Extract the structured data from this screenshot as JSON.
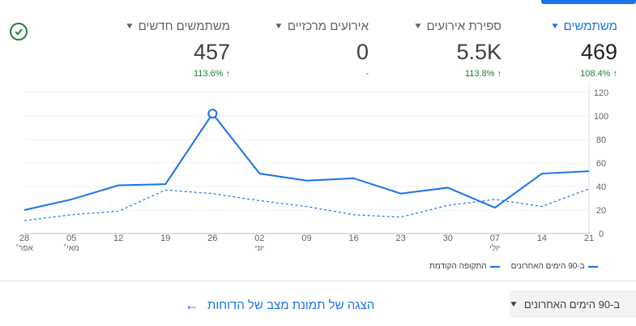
{
  "metrics": [
    {
      "label": "משתמשים",
      "value": "469",
      "change": "108.4%",
      "trend_icon": "arrow-up-icon"
    },
    {
      "label": "ספירת אירועים",
      "value": "5.5K",
      "change": "113.8%",
      "trend_icon": "arrow-up-icon"
    },
    {
      "label": "אירועים מרכזיים",
      "value": "0",
      "change": "-",
      "trend_icon": ""
    },
    {
      "label": "משתמשים חדשים",
      "value": "457",
      "change": "113.6%",
      "trend_icon": "arrow-up-icon"
    }
  ],
  "status_icon": "check-circle-icon",
  "chart_data": {
    "type": "line",
    "x": [
      "28",
      "05",
      "12",
      "19",
      "26",
      "02",
      "09",
      "16",
      "23",
      "30",
      "07",
      "14",
      "21"
    ],
    "x_sublabels": [
      "אפר׳",
      "מאי׳",
      "",
      "",
      "",
      "יוני",
      "",
      "",
      "",
      "",
      "יולי",
      "",
      ""
    ],
    "series": [
      {
        "name": "ב-90 הימים האחרונים",
        "style": "solid",
        "values": [
          20,
          29,
          41,
          42,
          102,
          51,
          45,
          47,
          34,
          39,
          22,
          51,
          53
        ]
      },
      {
        "name": "התקופה הקודמת",
        "style": "dashed",
        "values": [
          11,
          16,
          19,
          37,
          34,
          28,
          23,
          16,
          14,
          24,
          29,
          23,
          38
        ]
      }
    ],
    "ylim": [
      0,
      120
    ],
    "yticks": [
      0,
      20,
      40,
      60,
      80,
      100,
      120
    ],
    "color": "#1a73e8",
    "highlight_index": 4
  },
  "legend": {
    "current": "ב-90 הימים האחרונים",
    "previous": "התקופה הקודמת"
  },
  "footer": {
    "date_range": "ב-90 הימים האחרונים",
    "report_link": "הצגה של תמונת מצב של הדוחות"
  }
}
